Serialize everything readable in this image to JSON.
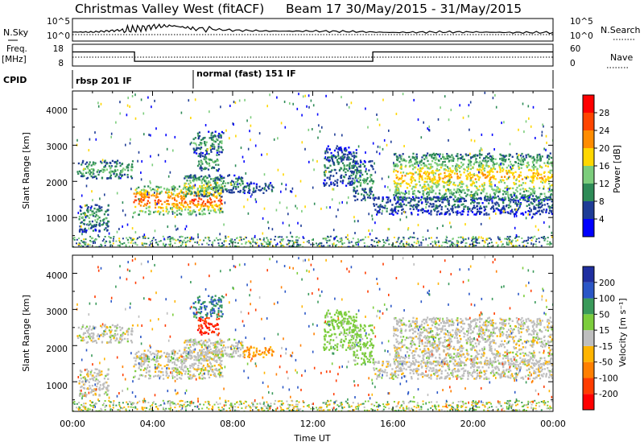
{
  "header": {
    "station": "Christmas Valley West (fitACF)",
    "beam_dates": "Beam 17 30/May/2015 - 31/May/2015"
  },
  "nsky_panel": {
    "label": "N.Sky",
    "left_ticks": [
      "10^5",
      "10^0"
    ],
    "right_ticks": [
      "10^5",
      "10^0"
    ],
    "right_label": "N.Search"
  },
  "freq_panel": {
    "label": "Freq.",
    "unit": "[MHz]",
    "left_ticks": [
      "18",
      "8"
    ],
    "right_ticks": [
      "60",
      "0"
    ],
    "right_label": "Nave"
  },
  "cpid_panel": {
    "label": "CPID",
    "modes": [
      {
        "name": "rbsp 201 IF",
        "start_hour": 0,
        "end_hour": 6
      },
      {
        "name": "normal (fast) 151 IF",
        "start_hour": 6,
        "end_hour": 24
      }
    ]
  },
  "axes": {
    "ylabel": "Slant Range [km]",
    "xlabel": "Time UT",
    "x_ticks": [
      "00:00",
      "04:00",
      "08:00",
      "12:00",
      "16:00",
      "20:00",
      "00:00"
    ],
    "y_ticks": [
      "1000",
      "2000",
      "3000",
      "4000"
    ]
  },
  "colorbars": {
    "power": {
      "label": "Power [dB]",
      "ticks": [
        "28",
        "24",
        "20",
        "16",
        "12",
        "8",
        "4"
      ],
      "colors": [
        "#0000ff",
        "#1e3c96",
        "#2e8b57",
        "#7ccd7c",
        "#ffd700",
        "#ff8c00",
        "#ff4500",
        "#ff0000"
      ]
    },
    "velocity": {
      "label": "Velocity [m s⁻¹]",
      "ticks": [
        "200",
        "100",
        "50",
        "15",
        "-15",
        "-50",
        "-100",
        "-200"
      ],
      "colors": [
        "#1f2fa0",
        "#2a56c6",
        "#3a9a5a",
        "#7ccd3c",
        "#bebebe",
        "#ffb400",
        "#ff7f00",
        "#ff3c00",
        "#ff0000"
      ]
    }
  },
  "chart_data": [
    {
      "type": "line",
      "title": "N.Sky",
      "x": [
        0,
        1,
        2,
        3,
        4,
        5,
        6,
        8,
        10,
        12,
        14,
        16,
        18,
        20,
        22,
        24
      ],
      "series": [
        {
          "values": [
            2,
            2,
            2.3,
            2.6,
            3.2,
            3.4,
            2.8,
            2.4,
            2.2,
            2.2,
            2.1,
            1.9,
            2.0,
            2.0,
            1.9,
            1.9
          ]
        }
      ],
      "ylim": [
        0,
        5
      ],
      "grid": false
    },
    {
      "type": "line",
      "title": "Freq.",
      "x": [
        0,
        3.1,
        3.1,
        15,
        15,
        24
      ],
      "series": [
        {
          "values": [
            14.5,
            14.5,
            10.2,
            10.2,
            14.5,
            14.5
          ]
        }
      ],
      "ylim": [
        8,
        18
      ]
    },
    {
      "type": "heatmap",
      "ylabel": "Slant Range [km]",
      "xlabel": "Time UT",
      "xlim": [
        0,
        24
      ],
      "ylim": [
        180,
        4500
      ],
      "features": [
        {
          "t": [
            0.2,
            3.0
          ],
          "range": [
            2100,
            2600
          ],
          "power": 14,
          "velocity": 0
        },
        {
          "t": [
            0.3,
            1.8
          ],
          "range": [
            600,
            1400
          ],
          "power": 12,
          "velocity": 0
        },
        {
          "t": [
            3.0,
            7.5
          ],
          "range": [
            1100,
            1900
          ],
          "power": 26,
          "velocity": 0
        },
        {
          "t": [
            5.5,
            7.5
          ],
          "range": [
            1600,
            2200
          ],
          "power": 18,
          "velocity": 0
        },
        {
          "t": [
            7.0,
            8.5
          ],
          "range": [
            1700,
            2200
          ],
          "power": 12,
          "velocity": 0
        },
        {
          "t": [
            6.2,
            7.3
          ],
          "range": [
            2300,
            2800
          ],
          "power": 14,
          "velocity": -200
        },
        {
          "t": [
            6.0,
            7.5
          ],
          "range": [
            2800,
            3400
          ],
          "power": 12,
          "velocity": 100
        },
        {
          "t": [
            8.5,
            10.0
          ],
          "range": [
            1700,
            2000
          ],
          "power": 10,
          "velocity": -50
        },
        {
          "t": [
            12.5,
            14.2
          ],
          "range": [
            1900,
            3000
          ],
          "power": 10,
          "velocity": 30
        },
        {
          "t": [
            14.0,
            15.0
          ],
          "range": [
            1500,
            2600
          ],
          "power": 12,
          "velocity": 30
        },
        {
          "t": [
            15.0,
            24.0
          ],
          "range": [
            1100,
            1600
          ],
          "power": 8,
          "velocity": 0
        },
        {
          "t": [
            16.0,
            24.0
          ],
          "range": [
            1500,
            2800
          ],
          "power": 20,
          "velocity": 0
        }
      ]
    }
  ]
}
